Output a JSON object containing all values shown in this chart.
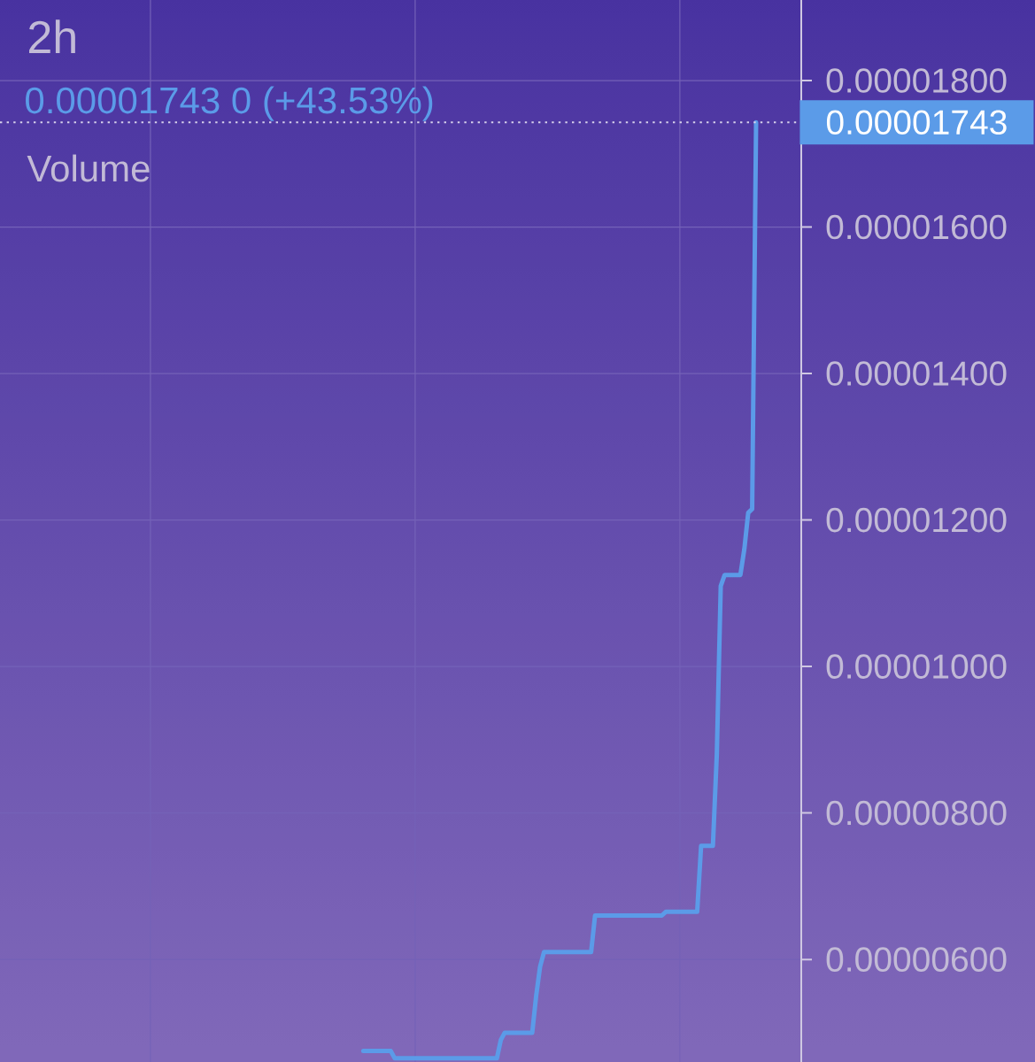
{
  "chart_data": {
    "type": "line",
    "title": "2h",
    "subtitle": "0.00001743 0 (+43.53%)",
    "annotations": [
      "Volume"
    ],
    "categories": [
      null,
      null,
      null,
      null,
      null,
      null,
      null,
      null,
      null,
      null,
      null,
      null,
      null,
      null,
      null,
      null,
      null,
      null,
      null,
      null,
      null,
      null,
      null,
      null,
      null,
      null,
      null,
      null,
      null,
      null,
      null,
      null,
      null,
      null,
      null,
      null,
      null,
      null,
      null,
      null,
      null,
      null,
      null,
      null,
      null,
      null,
      null,
      null,
      null,
      null,
      null,
      null,
      null,
      null,
      null,
      null,
      null,
      null,
      null,
      null,
      null,
      null,
      null,
      null,
      null,
      null,
      null,
      null,
      null,
      null,
      null,
      null,
      null,
      null,
      null,
      null,
      null,
      null,
      null,
      null,
      null,
      null,
      null,
      null,
      null,
      null,
      null,
      null,
      null,
      null,
      null,
      null,
      null,
      null,
      null,
      null,
      null,
      null,
      null,
      null,
      null,
      null,
      null,
      null,
      null,
      null,
      null,
      null,
      null,
      null,
      null,
      null,
      null,
      null,
      null,
      null,
      null,
      null,
      null,
      null,
      null,
      null,
      null,
      null,
      null,
      null,
      null,
      null,
      null,
      null,
      null,
      null,
      null,
      null,
      null,
      null,
      null,
      null,
      null,
      null,
      null,
      null,
      null,
      null,
      null,
      null,
      null,
      null,
      null,
      null,
      null,
      null,
      null,
      null,
      null,
      null,
      null,
      null,
      null,
      null,
      null,
      null,
      null,
      null,
      null,
      null,
      null,
      null,
      null,
      null,
      null,
      null,
      null,
      null,
      null,
      null,
      null,
      null,
      null,
      null,
      null,
      null,
      null,
      null,
      null,
      null,
      null,
      null,
      null,
      null,
      null,
      null,
      null,
      null,
      null,
      null,
      null,
      null,
      null,
      null,
      null,
      null,
      null,
      null
    ],
    "series": [
      {
        "color": "#5b9be8",
        "values": [
          null,
          null,
          null,
          null,
          null,
          null,
          null,
          null,
          null,
          null,
          null,
          null,
          null,
          null,
          null,
          null,
          null,
          null,
          null,
          null,
          null,
          null,
          null,
          null,
          null,
          null,
          null,
          null,
          null,
          null,
          null,
          null,
          null,
          null,
          null,
          null,
          null,
          null,
          null,
          null,
          null,
          null,
          null,
          null,
          null,
          null,
          null,
          null,
          null,
          null,
          null,
          null,
          null,
          null,
          null,
          null,
          null,
          null,
          null,
          null,
          null,
          null,
          null,
          null,
          null,
          null,
          null,
          null,
          null,
          null,
          null,
          null,
          null,
          null,
          null,
          null,
          null,
          null,
          null,
          null,
          null,
          null,
          null,
          null,
          null,
          null,
          null,
          null,
          null,
          null,
          null,
          null,
          4.75e-06,
          4.75e-06,
          4.75e-06,
          4.75e-06,
          4.75e-06,
          4.75e-06,
          4.75e-06,
          4.75e-06,
          4.65e-06,
          4.65e-06,
          4.65e-06,
          4.65e-06,
          4.65e-06,
          4.65e-06,
          4.65e-06,
          4.65e-06,
          4.65e-06,
          4.65e-06,
          4.65e-06,
          4.65e-06,
          4.65e-06,
          4.65e-06,
          4.65e-06,
          4.65e-06,
          4.65e-06,
          4.65e-06,
          4.65e-06,
          4.65e-06,
          4.65e-06,
          4.65e-06,
          4.65e-06,
          4.65e-06,
          4.65e-06,
          4.65e-06,
          4.65e-06,
          4.9e-06,
          5e-06,
          5e-06,
          5e-06,
          5e-06,
          5e-06,
          5e-06,
          5e-06,
          5e-06,
          5.5e-06,
          5.9e-06,
          6.1e-06,
          6.1e-06,
          6.1e-06,
          6.1e-06,
          6.1e-06,
          6.1e-06,
          6.1e-06,
          6.1e-06,
          6.1e-06,
          6.1e-06,
          6.1e-06,
          6.1e-06,
          6.1e-06,
          6.6e-06,
          6.6e-06,
          6.6e-06,
          6.6e-06,
          6.6e-06,
          6.6e-06,
          6.6e-06,
          6.6e-06,
          6.6e-06,
          6.6e-06,
          6.6e-06,
          6.6e-06,
          6.6e-06,
          6.6e-06,
          6.6e-06,
          6.6e-06,
          6.6e-06,
          6.6e-06,
          6.65e-06,
          6.65e-06,
          6.65e-06,
          6.65e-06,
          6.65e-06,
          6.65e-06,
          6.65e-06,
          6.65e-06,
          6.65e-06,
          7.55e-06,
          7.55e-06,
          7.55e-06,
          7.55e-06,
          8.8e-06,
          1.11e-05,
          1.125e-05,
          1.125e-05,
          1.125e-05,
          1.125e-05,
          1.125e-05,
          1.16e-05,
          1.21e-05,
          1.215e-05,
          1.743e-05,
          null,
          null,
          null,
          null,
          null,
          null,
          null,
          null,
          null,
          null,
          null
        ]
      }
    ],
    "ylim": [
      4.6e-06,
      1.91e-05
    ],
    "yticks": [
      {
        "value": 6e-06,
        "label": "0.00000600"
      },
      {
        "value": 8e-06,
        "label": "0.00000800"
      },
      {
        "value": 1e-05,
        "label": "0.00001000"
      },
      {
        "value": 1.2e-05,
        "label": "0.00001200"
      },
      {
        "value": 1.4e-05,
        "label": "0.00001400"
      },
      {
        "value": 1.6e-05,
        "label": "0.00001600"
      },
      {
        "value": 1.8e-05,
        "label": "0.00001800"
      }
    ],
    "grid": true,
    "tick_labels": "y",
    "ref_lines": [
      {
        "axis": "y",
        "value": 1.743e-05,
        "label": "0.00001743",
        "line_style": "dotted"
      }
    ]
  }
}
